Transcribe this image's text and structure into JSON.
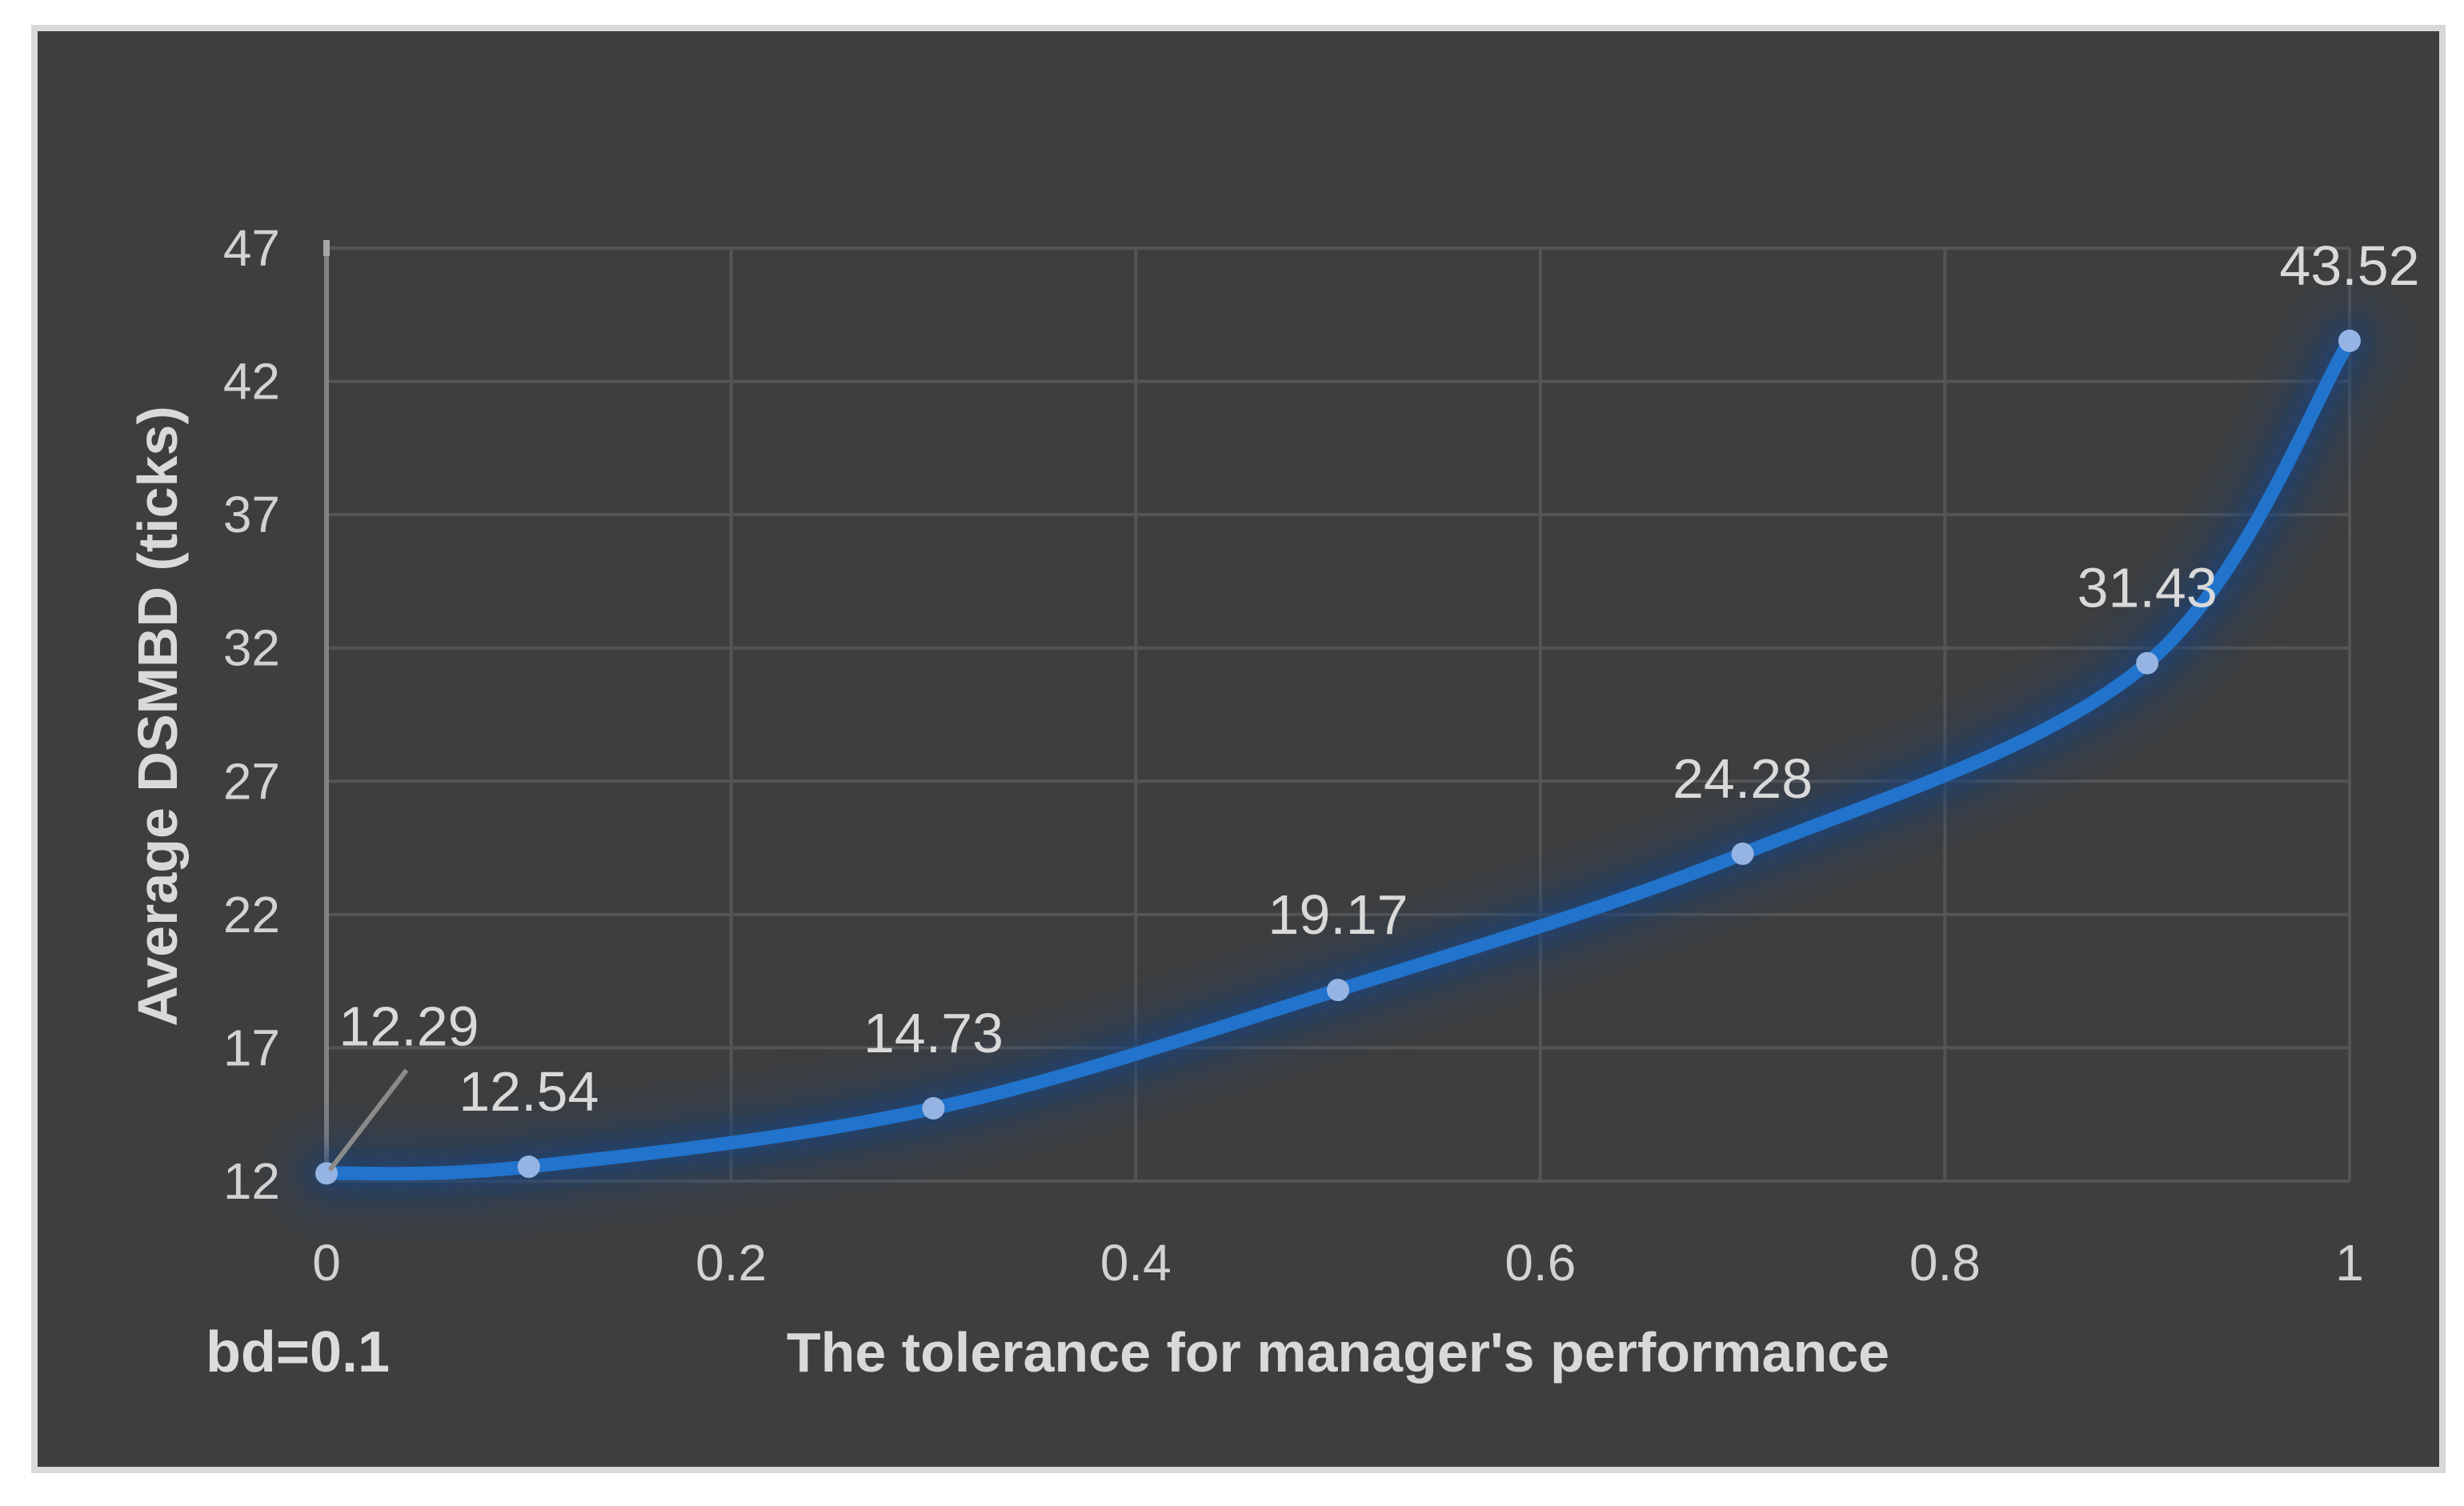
{
  "page": {
    "background_color": "#ffffff"
  },
  "chart_frame": {
    "border_color": "#d9d9d9",
    "background_color": "#3e3e3e"
  },
  "chart_data": {
    "type": "line",
    "title": "",
    "xlabel": "The tolerance for manager's performance",
    "ylabel": "Average DSMBD (ticks)",
    "annotation": "bd=0.1",
    "series": [
      {
        "name": "Average DSMBD",
        "x": [
          0,
          0.1,
          0.3,
          0.5,
          0.7,
          0.9,
          1
        ],
        "y": [
          12.29,
          12.54,
          14.73,
          19.17,
          24.28,
          31.43,
          43.52
        ],
        "point_labels": [
          "12.29",
          "12.54",
          "14.73",
          "19.17",
          "24.28",
          "31.43",
          "43.52"
        ]
      }
    ],
    "xlim": [
      0,
      1
    ],
    "ylim": [
      12,
      47
    ],
    "x_tick_values": [
      0,
      0.2,
      0.4,
      0.6,
      0.8,
      1
    ],
    "x_tick_labels": [
      "0",
      "0.2",
      "0.4",
      "0.6",
      "0.8",
      "1"
    ],
    "y_tick_values": [
      12,
      17,
      22,
      27,
      32,
      37,
      42,
      47
    ],
    "y_tick_labels": [
      "12",
      "17",
      "22",
      "27",
      "32",
      "37",
      "42",
      "47"
    ],
    "grid": true,
    "legend": false,
    "smooth_line": true,
    "line_glow": true,
    "label_placement": {
      "default_dy": -94,
      "callout_point_index": 0,
      "callout_dx": 103,
      "callout_dy": -184,
      "callout_has_leader_line": true
    },
    "colors": {
      "line": "#2173cb",
      "marker": "#95b4e3",
      "glow": "#16427e",
      "gridline": "#555555",
      "axis_line": "#828282",
      "axis_tick_cap": "#a6a6a6",
      "tick_text": "#d2d2d2",
      "label_text": "#d9d9d9",
      "title_text": "#d9d9d9",
      "leader_line": "#8a8a8a",
      "plot_background": "#3e3e3e"
    }
  }
}
